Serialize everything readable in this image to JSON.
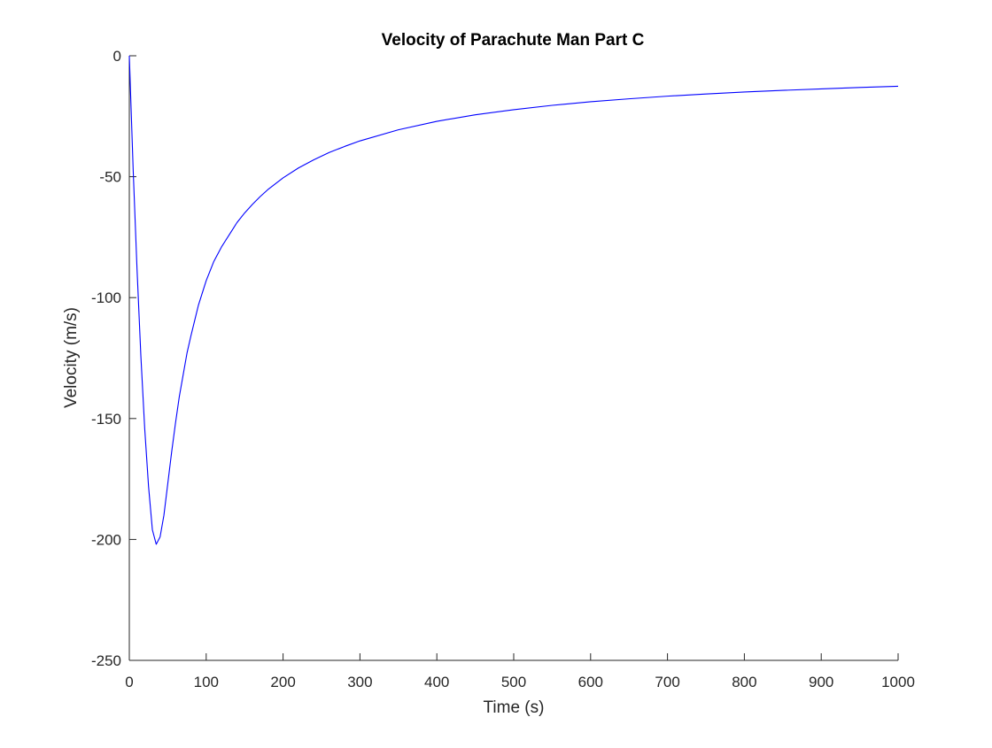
{
  "chart_data": {
    "type": "line",
    "title": "Velocity of Parachute Man Part C",
    "xlabel": "Time (s)",
    "ylabel": "Velocity (m/s)",
    "xlim": [
      0,
      1000
    ],
    "ylim": [
      -250,
      0
    ],
    "xticks": [
      0,
      100,
      200,
      300,
      400,
      500,
      600,
      700,
      800,
      900,
      1000
    ],
    "yticks": [
      -250,
      -200,
      -150,
      -100,
      -50,
      0
    ],
    "xtick_labels": [
      "0",
      "100",
      "200",
      "300",
      "400",
      "500",
      "600",
      "700",
      "800",
      "900",
      "1000"
    ],
    "ytick_labels": [
      "-250",
      "-200",
      "-150",
      "-100",
      "-50",
      "0"
    ],
    "grid": false,
    "legend": "none",
    "series": [
      {
        "color": "#0000ff",
        "x": [
          0,
          5,
          10,
          15,
          20,
          25,
          30,
          35,
          40,
          45,
          50,
          55,
          60,
          65,
          70,
          75,
          80,
          90,
          100,
          110,
          120,
          130,
          140,
          150,
          160,
          170,
          180,
          200,
          220,
          240,
          260,
          280,
          300,
          350,
          400,
          450,
          500,
          550,
          600,
          650,
          700,
          750,
          800,
          850,
          900,
          950,
          1000
        ],
        "y": [
          0,
          -47,
          -88,
          -124,
          -154,
          -178,
          -196,
          -202,
          -199,
          -190,
          -177,
          -164,
          -152,
          -141,
          -132,
          -123,
          -116,
          -103,
          -93,
          -85,
          -79,
          -74,
          -69,
          -65,
          -61.5,
          -58.3,
          -55.4,
          -50.5,
          -46.4,
          -43,
          -40,
          -37.5,
          -35.2,
          -30.6,
          -27.1,
          -24.4,
          -22.3,
          -20.5,
          -19,
          -17.8,
          -16.7,
          -15.8,
          -15,
          -14.3,
          -13.7,
          -13.1,
          -12.6
        ]
      }
    ]
  }
}
